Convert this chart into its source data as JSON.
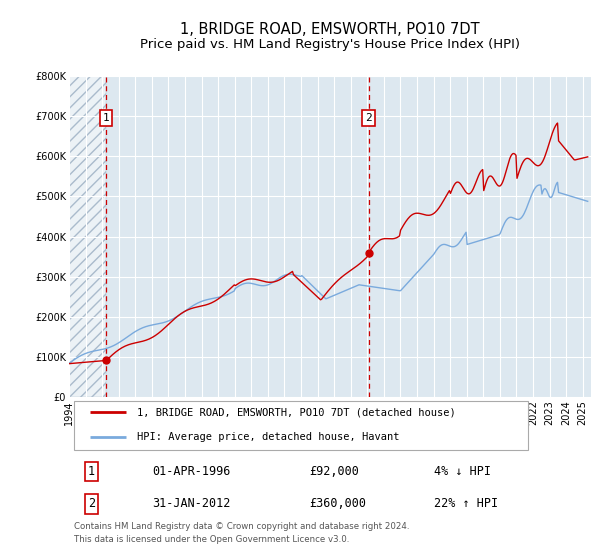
{
  "title": "1, BRIDGE ROAD, EMSWORTH, PO10 7DT",
  "subtitle": "Price paid vs. HM Land Registry's House Price Index (HPI)",
  "ylim": [
    0,
    800000
  ],
  "yticks": [
    0,
    100000,
    200000,
    300000,
    400000,
    500000,
    600000,
    700000,
    800000
  ],
  "ytick_labels": [
    "£0",
    "£100K",
    "£200K",
    "£300K",
    "£400K",
    "£500K",
    "£600K",
    "£700K",
    "£800K"
  ],
  "xlim_start": 1994.0,
  "xlim_end": 2025.5,
  "xticks": [
    1994,
    1995,
    1996,
    1997,
    1998,
    1999,
    2000,
    2001,
    2002,
    2003,
    2004,
    2005,
    2006,
    2007,
    2008,
    2009,
    2010,
    2011,
    2012,
    2013,
    2014,
    2015,
    2016,
    2017,
    2018,
    2019,
    2020,
    2021,
    2022,
    2023,
    2024,
    2025
  ],
  "sale1_x": 1996.25,
  "sale1_y": 92000,
  "sale1_label": "1",
  "sale2_x": 2012.08,
  "sale2_y": 360000,
  "sale2_label": "2",
  "red_color": "#cc0000",
  "blue_color": "#7aaadd",
  "bg_color": "#dde8f0",
  "hatch_color": "#bbccdd",
  "grid_color": "#ffffff",
  "legend_label_red": "1, BRIDGE ROAD, EMSWORTH, PO10 7DT (detached house)",
  "legend_label_blue": "HPI: Average price, detached house, Havant",
  "table_row1": [
    "1",
    "01-APR-1996",
    "£92,000",
    "4% ↓ HPI"
  ],
  "table_row2": [
    "2",
    "31-JAN-2012",
    "£360,000",
    "22% ↑ HPI"
  ],
  "footnote1": "Contains HM Land Registry data © Crown copyright and database right 2024.",
  "footnote2": "This data is licensed under the Open Government Licence v3.0.",
  "title_fontsize": 10.5,
  "subtitle_fontsize": 9.5,
  "tick_fontsize": 7
}
